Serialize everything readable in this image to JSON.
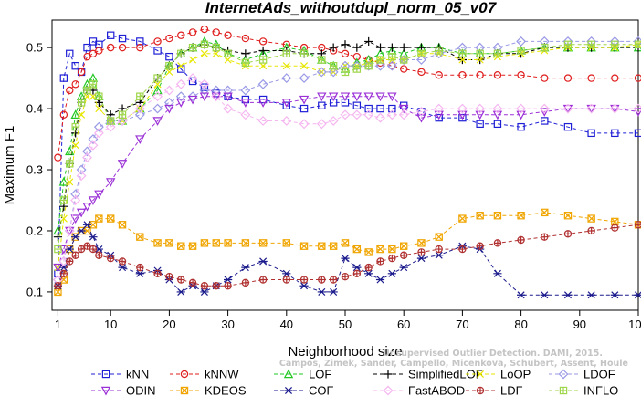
{
  "chart_data": {
    "type": "line",
    "title": "InternetAds_withoutdupl_norm_05_v07",
    "xlabel": "Neighborhood size",
    "ylabel": "Maximum F1",
    "xlim": [
      0,
      100
    ],
    "ylim": [
      0.07,
      0.545
    ],
    "x_ticks": [
      "1",
      "10",
      "20",
      "30",
      "40",
      "50",
      "60",
      "70",
      "80",
      "90",
      "100"
    ],
    "y_ticks": [
      "0.1",
      "0.2",
      "0.3",
      "0.4",
      "0.5"
    ],
    "grid": false,
    "legend_position": "bottom",
    "x": [
      1,
      2,
      3,
      4,
      5,
      6,
      7,
      8,
      10,
      12,
      15,
      18,
      20,
      22,
      24,
      26,
      28,
      30,
      33,
      36,
      40,
      43,
      46,
      48,
      50,
      52,
      54,
      56,
      58,
      60,
      63,
      66,
      70,
      73,
      76,
      80,
      84,
      88,
      92,
      96,
      100
    ],
    "series": [
      {
        "name": "kNN",
        "marker": "square",
        "color": "#1f1fd6",
        "values": [
          0.13,
          0.45,
          0.49,
          0.47,
          0.46,
          0.5,
          0.51,
          0.505,
          0.52,
          0.515,
          0.51,
          0.495,
          0.485,
          0.465,
          0.445,
          0.435,
          0.425,
          0.42,
          0.415,
          0.415,
          0.405,
          0.4,
          0.405,
          0.41,
          0.41,
          0.405,
          0.4,
          0.4,
          0.4,
          0.405,
          0.395,
          0.385,
          0.385,
          0.375,
          0.375,
          0.37,
          0.38,
          0.37,
          0.36,
          0.36,
          0.36
        ]
      },
      {
        "name": "kNNW",
        "marker": "circle",
        "color": "#e01e1e",
        "values": [
          0.32,
          0.39,
          0.43,
          0.44,
          0.46,
          0.485,
          0.49,
          0.495,
          0.5,
          0.5,
          0.5,
          0.51,
          0.515,
          0.52,
          0.525,
          0.53,
          0.525,
          0.52,
          0.515,
          0.51,
          0.505,
          0.5,
          0.5,
          0.495,
          0.49,
          0.485,
          0.48,
          0.475,
          0.47,
          0.465,
          0.46,
          0.455,
          0.455,
          0.455,
          0.455,
          0.455,
          0.45,
          0.45,
          0.45,
          0.45,
          0.45
        ]
      },
      {
        "name": "LOF",
        "marker": "triangle",
        "color": "#22c722",
        "values": [
          0.2,
          0.28,
          0.33,
          0.39,
          0.42,
          0.44,
          0.45,
          0.42,
          0.38,
          0.38,
          0.4,
          0.43,
          0.47,
          0.49,
          0.5,
          0.51,
          0.505,
          0.49,
          0.48,
          0.49,
          0.5,
          0.495,
          0.48,
          0.47,
          0.465,
          0.475,
          0.48,
          0.49,
          0.495,
          0.49,
          0.5,
          0.5,
          0.49,
          0.49,
          0.49,
          0.495,
          0.5,
          0.5,
          0.5,
          0.5,
          0.5
        ]
      },
      {
        "name": "SimplifiedLOF",
        "marker": "plus",
        "color": "#000000",
        "values": [
          0.19,
          0.24,
          0.31,
          0.36,
          0.41,
          0.43,
          0.43,
          0.41,
          0.39,
          0.4,
          0.41,
          0.45,
          0.47,
          0.49,
          0.5,
          0.505,
          0.5,
          0.495,
          0.49,
          0.495,
          0.495,
          0.49,
          0.49,
          0.5,
          0.505,
          0.5,
          0.51,
          0.5,
          0.5,
          0.5,
          0.5,
          0.5,
          0.48,
          0.48,
          0.49,
          0.49,
          0.5,
          0.5,
          0.5,
          0.5,
          0.5
        ]
      },
      {
        "name": "LoOP",
        "marker": "x",
        "color": "#e6e600",
        "values": [
          0.14,
          0.22,
          0.28,
          0.34,
          0.39,
          0.42,
          0.42,
          0.4,
          0.38,
          0.38,
          0.4,
          0.44,
          0.46,
          0.47,
          0.48,
          0.49,
          0.49,
          0.48,
          0.47,
          0.47,
          0.47,
          0.47,
          0.46,
          0.46,
          0.47,
          0.47,
          0.475,
          0.48,
          0.48,
          0.48,
          0.49,
          0.49,
          0.48,
          0.48,
          0.485,
          0.49,
          0.495,
          0.5,
          0.5,
          0.5,
          0.505
        ]
      },
      {
        "name": "LDOF",
        "marker": "diamond",
        "color": "#9a9ae6",
        "values": [
          0.12,
          0.15,
          0.2,
          0.26,
          0.3,
          0.33,
          0.35,
          0.37,
          0.38,
          0.38,
          0.39,
          0.4,
          0.41,
          0.42,
          0.42,
          0.43,
          0.43,
          0.43,
          0.43,
          0.44,
          0.45,
          0.45,
          0.46,
          0.46,
          0.47,
          0.47,
          0.47,
          0.47,
          0.47,
          0.48,
          0.48,
          0.49,
          0.5,
          0.5,
          0.5,
          0.51,
          0.51,
          0.51,
          0.51,
          0.51,
          0.51
        ]
      },
      {
        "name": "ODIN",
        "marker": "triangle-down",
        "color": "#9b30d6",
        "values": [
          0.14,
          0.17,
          0.2,
          0.22,
          0.23,
          0.24,
          0.25,
          0.26,
          0.28,
          0.31,
          0.35,
          0.38,
          0.4,
          0.41,
          0.415,
          0.42,
          0.42,
          0.42,
          0.41,
          0.41,
          0.41,
          0.415,
          0.42,
          0.42,
          0.42,
          0.42,
          0.42,
          0.42,
          0.42,
          0.4,
          0.385,
          0.39,
          0.39,
          0.39,
          0.39,
          0.39,
          0.395,
          0.4,
          0.4,
          0.4,
          0.395
        ]
      },
      {
        "name": "KDEOS",
        "marker": "square-x",
        "color": "#f0a500",
        "values": [
          0.1,
          0.12,
          0.17,
          0.19,
          0.2,
          0.2,
          0.21,
          0.22,
          0.22,
          0.21,
          0.19,
          0.18,
          0.18,
          0.175,
          0.175,
          0.18,
          0.18,
          0.18,
          0.18,
          0.18,
          0.18,
          0.175,
          0.175,
          0.175,
          0.18,
          0.17,
          0.165,
          0.17,
          0.17,
          0.175,
          0.18,
          0.19,
          0.22,
          0.225,
          0.225,
          0.225,
          0.23,
          0.225,
          0.22,
          0.215,
          0.21
        ]
      },
      {
        "name": "COF",
        "marker": "asterisk",
        "color": "#1a1a8c",
        "values": [
          0.11,
          0.14,
          0.17,
          0.19,
          0.2,
          0.21,
          0.19,
          0.17,
          0.16,
          0.14,
          0.13,
          0.135,
          0.12,
          0.1,
          0.11,
          0.1,
          0.11,
          0.12,
          0.14,
          0.15,
          0.13,
          0.11,
          0.1,
          0.1,
          0.155,
          0.14,
          0.13,
          0.12,
          0.13,
          0.14,
          0.155,
          0.16,
          0.175,
          0.17,
          0.13,
          0.095,
          0.095,
          0.095,
          0.095,
          0.095,
          0.095
        ]
      },
      {
        "name": "FastABOD",
        "marker": "diamond-filled",
        "color": "#f5b6f0",
        "values": [
          0.12,
          0.15,
          0.2,
          0.25,
          0.29,
          0.32,
          0.34,
          0.36,
          0.37,
          0.38,
          0.4,
          0.42,
          0.43,
          0.44,
          0.45,
          0.44,
          0.42,
          0.4,
          0.39,
          0.38,
          0.38,
          0.375,
          0.375,
          0.38,
          0.39,
          0.39,
          0.39,
          0.385,
          0.39,
          0.39,
          0.395,
          0.4,
          0.4,
          0.4,
          0.4,
          0.4,
          0.4,
          0.4,
          0.4,
          0.4,
          0.4
        ]
      },
      {
        "name": "LDF",
        "marker": "circle-plus",
        "color": "#b03030",
        "values": [
          0.11,
          0.13,
          0.15,
          0.16,
          0.17,
          0.175,
          0.17,
          0.16,
          0.155,
          0.15,
          0.14,
          0.13,
          0.125,
          0.12,
          0.115,
          0.11,
          0.11,
          0.11,
          0.115,
          0.12,
          0.12,
          0.12,
          0.12,
          0.12,
          0.125,
          0.13,
          0.14,
          0.15,
          0.155,
          0.16,
          0.165,
          0.17,
          0.17,
          0.175,
          0.18,
          0.185,
          0.19,
          0.195,
          0.2,
          0.205,
          0.21
        ]
      },
      {
        "name": "INFLO",
        "marker": "square-plus",
        "color": "#9fd64a",
        "values": [
          0.17,
          0.25,
          0.31,
          0.37,
          0.41,
          0.43,
          0.44,
          0.42,
          0.38,
          0.39,
          0.42,
          0.45,
          0.47,
          0.49,
          0.5,
          0.505,
          0.5,
          0.49,
          0.475,
          0.48,
          0.49,
          0.49,
          0.48,
          0.47,
          0.46,
          0.465,
          0.47,
          0.48,
          0.485,
          0.48,
          0.49,
          0.495,
          0.49,
          0.49,
          0.49,
          0.495,
          0.5,
          0.505,
          0.505,
          0.505,
          0.505
        ]
      }
    ],
    "credit": "Campos, Zimek, Sander, Campello, Micenkova, Schubert, Assent, Houle",
    "credit_journal": "Unsupervised Outlier Detection. DAMI, 2015."
  }
}
